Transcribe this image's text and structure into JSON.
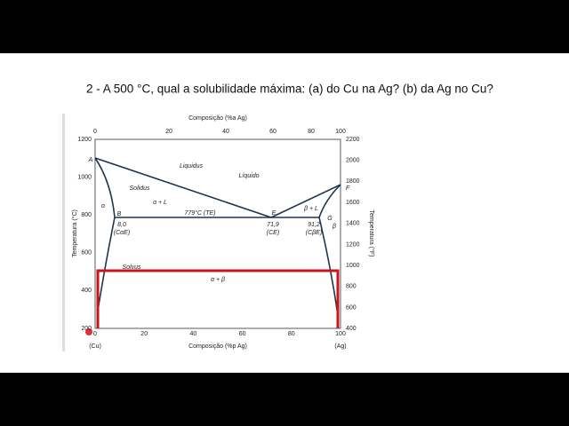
{
  "question": "2 - A 500 °C, qual a solubilidade máxima: (a) do Cu na Ag? (b) da Ag no Cu?",
  "diagram": {
    "top_axis": {
      "title": "Composição (%a Ag)",
      "ticks": [
        "0",
        "20",
        "40",
        "60",
        "80",
        "100"
      ]
    },
    "bottom_axis": {
      "title": "Composição (%p Ag)",
      "ticks": [
        "0",
        "20",
        "40",
        "60",
        "80",
        "100"
      ],
      "left_end": "(Cu)",
      "right_end": "(Ag)"
    },
    "left_axis": {
      "title": "Temperatura (°C)",
      "ticks": [
        "1200",
        "1000",
        "800",
        "600",
        "400",
        "200"
      ]
    },
    "right_axis": {
      "title": "Temperatura (°F)",
      "ticks": [
        "2200",
        "2000",
        "1800",
        "1600",
        "1400",
        "1200",
        "1000",
        "800",
        "600",
        "400"
      ]
    },
    "labels": [
      "A",
      "Liquidus",
      "Líquido",
      "Solidus",
      "α",
      "α + L",
      "779°C (TE)",
      "B",
      "8,0",
      "(CαE)",
      "E",
      "71,9",
      "(CE)",
      "β + L",
      "F",
      "G",
      "β",
      "91,2",
      "(CβE)",
      "Solvus",
      "α + β"
    ]
  }
}
